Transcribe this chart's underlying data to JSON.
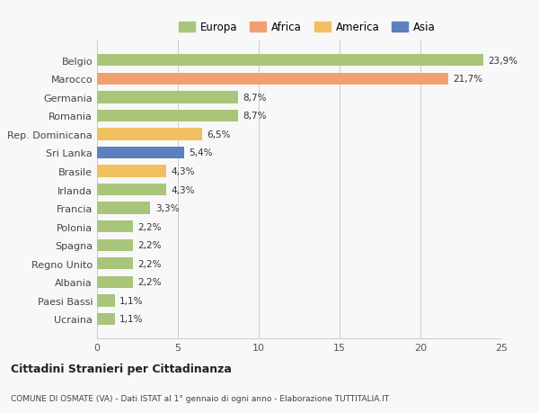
{
  "categories": [
    "Ucraina",
    "Paesi Bassi",
    "Albania",
    "Regno Unito",
    "Spagna",
    "Polonia",
    "Francia",
    "Irlanda",
    "Brasile",
    "Sri Lanka",
    "Rep. Dominicana",
    "Romania",
    "Germania",
    "Marocco",
    "Belgio"
  ],
  "values": [
    1.1,
    1.1,
    2.2,
    2.2,
    2.2,
    2.2,
    3.3,
    4.3,
    4.3,
    5.4,
    6.5,
    8.7,
    8.7,
    21.7,
    23.9
  ],
  "labels": [
    "1,1%",
    "1,1%",
    "2,2%",
    "2,2%",
    "2,2%",
    "2,2%",
    "3,3%",
    "4,3%",
    "4,3%",
    "5,4%",
    "6,5%",
    "8,7%",
    "8,7%",
    "21,7%",
    "23,9%"
  ],
  "colors": [
    "#a8c57a",
    "#a8c57a",
    "#a8c57a",
    "#a8c57a",
    "#a8c57a",
    "#a8c57a",
    "#a8c57a",
    "#a8c57a",
    "#f0c060",
    "#5b7fbf",
    "#f0c060",
    "#a8c57a",
    "#a8c57a",
    "#f0a070",
    "#a8c57a"
  ],
  "legend": [
    {
      "label": "Europa",
      "color": "#a8c57a"
    },
    {
      "label": "Africa",
      "color": "#f0a070"
    },
    {
      "label": "America",
      "color": "#f0c060"
    },
    {
      "label": "Asia",
      "color": "#5b7fbf"
    }
  ],
  "xlim": [
    0,
    25
  ],
  "xticks": [
    0,
    5,
    10,
    15,
    20,
    25
  ],
  "title": "Cittadini Stranieri per Cittadinanza",
  "subtitle": "COMUNE DI OSMATE (VA) - Dati ISTAT al 1° gennaio di ogni anno - Elaborazione TUTTITALIA.IT",
  "bg_color": "#f8f8f8",
  "bar_height": 0.65
}
